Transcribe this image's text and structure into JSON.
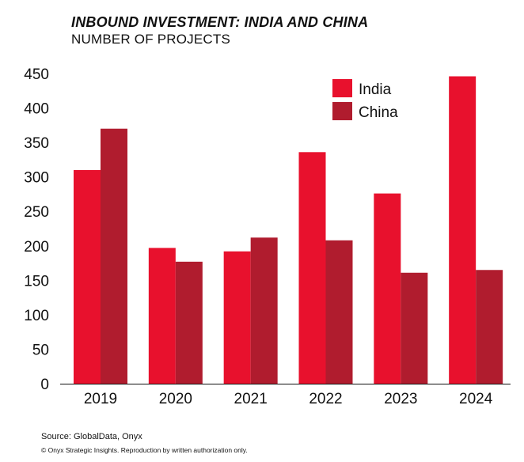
{
  "chart_data": {
    "type": "bar",
    "title": "INBOUND INVESTMENT: INDIA AND CHINA",
    "subtitle": "NUMBER OF PROJECTS",
    "categories": [
      "2019",
      "2020",
      "2021",
      "2022",
      "2023",
      "2024"
    ],
    "series": [
      {
        "name": "India",
        "color": "#e8112d",
        "values": [
          310,
          197,
          192,
          336,
          276,
          446
        ]
      },
      {
        "name": "China",
        "color": "#b01c2e",
        "values": [
          370,
          177,
          212,
          208,
          161,
          165
        ]
      }
    ],
    "ylim": [
      0,
      450
    ],
    "yticks": [
      0,
      50,
      100,
      150,
      200,
      250,
      300,
      350,
      400,
      450
    ],
    "xlabel": "",
    "ylabel": "",
    "grid": false,
    "legend_position": "top-right"
  },
  "footer": {
    "source": "Source: GlobalData, Onyx",
    "copyright": "© Onyx Strategic Insights. Reproduction by written authorization only."
  }
}
